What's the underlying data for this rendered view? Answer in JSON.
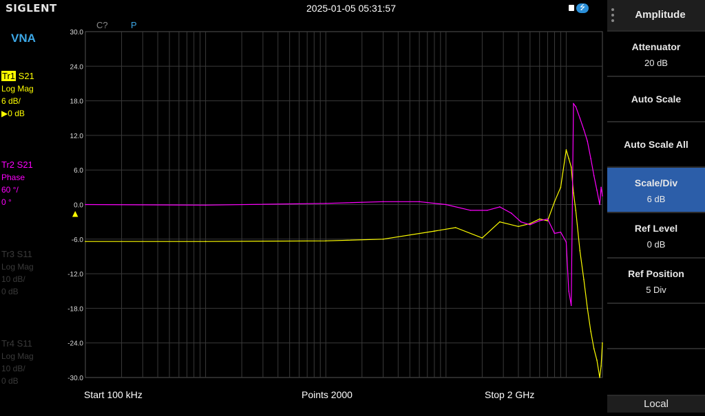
{
  "header": {
    "logo": "SIGLENT",
    "datetime": "2025-01-05 05:31:57",
    "lock_icon": "lock-icon",
    "usb_icon": "usb-icon",
    "usb_glyph": "⭍"
  },
  "left": {
    "mode": "VNA",
    "traces": [
      {
        "tag": "Tr1",
        "param": "S21",
        "format": "Log Mag",
        "scale": "6 dB/",
        "ref": "▶0 dB",
        "color": "#ffff00"
      },
      {
        "tag": "Tr2",
        "param": "S21",
        "format": "Phase",
        "scale": "60 °/",
        "ref": "0 °",
        "color": "#ff00ff"
      },
      {
        "tag": "Tr3",
        "param": "S11",
        "format": "Log Mag",
        "scale": "10 dB/",
        "ref": "0 dB",
        "color": "#3a3a3a"
      },
      {
        "tag": "Tr4",
        "param": "S11",
        "format": "Log Mag",
        "scale": "10 dB/",
        "ref": "0 dB",
        "color": "#3a3a3a"
      }
    ]
  },
  "plot": {
    "indicators": [
      "C?",
      "P"
    ],
    "ref_marker": "▲"
  },
  "bottom": {
    "start": "Start  100 kHz",
    "points": "Points  2000",
    "stop": "Stop  2 GHz"
  },
  "menu": {
    "title": "Amplitude",
    "items": [
      {
        "label": "Attenuator",
        "value": "20 dB"
      },
      {
        "label": "Auto Scale",
        "value": ""
      },
      {
        "label": "Auto Scale All",
        "value": ""
      },
      {
        "label": "Scale/Div",
        "value": "6 dB",
        "active": true
      },
      {
        "label": "Ref Level",
        "value": "0 dB"
      },
      {
        "label": "Ref Position",
        "value": "5 Div"
      },
      {
        "label": "",
        "value": ""
      },
      {
        "label": "",
        "value": ""
      }
    ],
    "footer": "Local"
  },
  "chart_data": {
    "type": "line",
    "x_scale": "log",
    "x_range_hz": [
      100000,
      2000000000
    ],
    "ylim": [
      -30,
      30
    ],
    "y_ticks": [
      "30.0",
      "24.0",
      "18.0",
      "12.0",
      "6.0",
      "0.0",
      "-6.0",
      "-12.0",
      "-18.0",
      "-24.0",
      "-30.0"
    ],
    "grid": true,
    "series": [
      {
        "name": "Tr1 S21",
        "color": "#ffff00",
        "x_hz": [
          100000,
          1000000,
          10000000,
          30000000,
          80000000,
          120000000,
          200000000,
          280000000,
          400000000,
          500000000,
          600000000,
          700000000,
          800000000,
          900000000,
          1000000000,
          1050000000,
          1100000000,
          1150000000,
          1200000000,
          1300000000,
          1400000000,
          1500000000,
          1600000000,
          1700000000,
          1800000000,
          1900000000,
          1950000000,
          2000000000
        ],
        "y_db": [
          -6.4,
          -6.4,
          -6.3,
          -6.0,
          -4.6,
          -4.0,
          -5.8,
          -3.0,
          -3.8,
          -3.3,
          -2.5,
          -2.8,
          0.5,
          3.0,
          9.5,
          8.0,
          6.5,
          2.0,
          -1.0,
          -8.0,
          -13.0,
          -18.0,
          -22.0,
          -25.0,
          -27.0,
          -30.0,
          -28.0,
          -24.0
        ]
      },
      {
        "name": "Tr2 S21",
        "color": "#ff00ff",
        "x_hz": [
          100000,
          1000000,
          10000000,
          30000000,
          60000000,
          100000000,
          160000000,
          220000000,
          280000000,
          350000000,
          420000000,
          500000000,
          600000000,
          700000000,
          800000000,
          900000000,
          1000000000,
          1050000000,
          1100000000,
          1150000000,
          1200000000,
          1300000000,
          1400000000,
          1500000000,
          1600000000,
          1700000000,
          1800000000,
          1900000000,
          1950000000,
          2000000000
        ],
        "y_db": [
          0.0,
          -0.1,
          0.2,
          0.5,
          0.5,
          0.0,
          -1.0,
          -1.0,
          -0.4,
          -1.5,
          -3.0,
          -3.5,
          -2.8,
          -2.5,
          -5.0,
          -4.8,
          -6.5,
          -15.0,
          -17.5,
          17.5,
          17.0,
          15.0,
          13.0,
          11.0,
          8.0,
          5.0,
          2.5,
          0.0,
          3.0,
          1.5
        ]
      }
    ]
  }
}
